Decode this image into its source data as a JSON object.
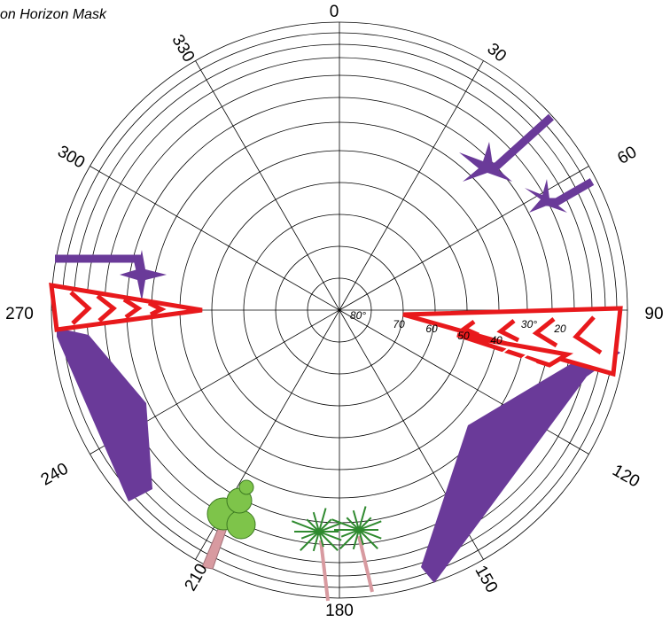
{
  "title": "on Horizon Mask",
  "azimuth_labels": [
    "0",
    "30",
    "60",
    "90",
    "120",
    "150",
    "180",
    "210",
    "240",
    "270",
    "300",
    "330"
  ],
  "elevation_labels": [
    "80°",
    "70",
    "60",
    "50",
    "40",
    "30°",
    "20"
  ]
}
